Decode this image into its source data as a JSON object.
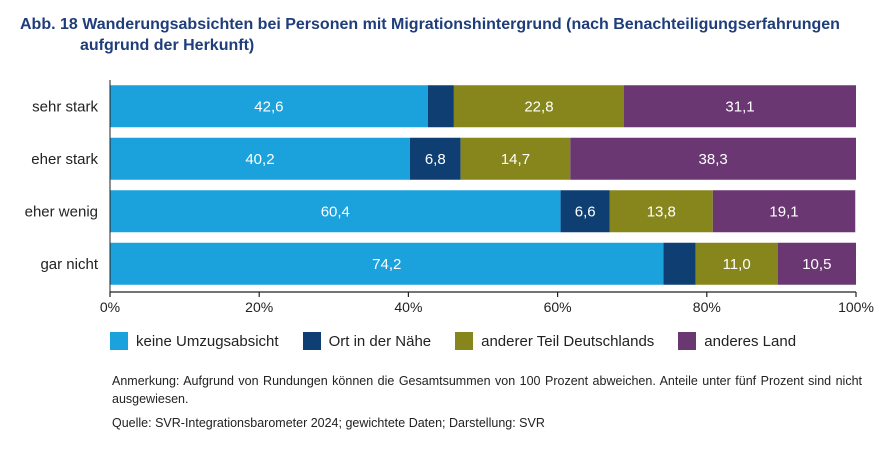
{
  "figure": {
    "title_line1": "Abb. 18 Wanderungsabsichten bei Personen mit Migrationshintergrund (nach Benachteiligungserfahrungen",
    "title_line2": "aufgrund der Herkunft)",
    "note": "Anmerkung: Aufgrund von Rundungen können die Gesamtsummen von 100 Prozent abweichen. Anteile unter fünf Prozent sind nicht ausgewiesen.",
    "source": "Quelle: SVR-Integrationsbarometer 2024; gewichtete Daten; Darstellung: SVR"
  },
  "chart_data": {
    "type": "bar",
    "orientation": "horizontal",
    "stacked": true,
    "categories": [
      "sehr stark",
      "eher stark",
      "eher wenig",
      "gar nicht"
    ],
    "series": [
      {
        "name": "keine Umzugsabsicht",
        "color": "#1ba1dc",
        "values": [
          42.6,
          40.2,
          60.4,
          74.2
        ],
        "labels": [
          "42,6",
          "40,2",
          "60,4",
          "74,2"
        ]
      },
      {
        "name": "Ort in der Nähe",
        "color": "#0f3f72",
        "values": [
          3.5,
          6.8,
          6.6,
          4.3
        ],
        "labels": [
          "",
          "6,8",
          "6,6",
          ""
        ]
      },
      {
        "name": "anderer Teil Deutschlands",
        "color": "#86861c",
        "values": [
          22.8,
          14.7,
          13.8,
          11.0
        ],
        "labels": [
          "22,8",
          "14,7",
          "13,8",
          "11,0"
        ]
      },
      {
        "name": "anderes Land",
        "color": "#6a3773",
        "values": [
          31.1,
          38.3,
          19.1,
          10.5
        ],
        "labels": [
          "31,1",
          "38,3",
          "19,1",
          "10,5"
        ]
      }
    ],
    "xlim": [
      0,
      100
    ],
    "ticks": [
      0,
      20,
      40,
      60,
      80,
      100
    ],
    "tick_labels": [
      "0%",
      "20%",
      "40%",
      "60%",
      "80%",
      "100%"
    ],
    "grid": false,
    "legend_position": "bottom"
  }
}
